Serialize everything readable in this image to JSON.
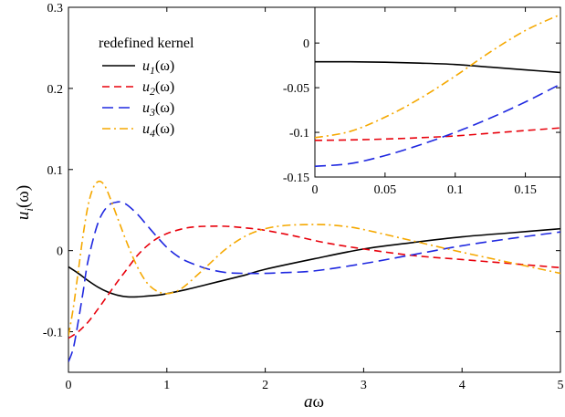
{
  "chart_data": [
    {
      "type": "line",
      "xlabel_italic": "a",
      "xlabel_rest": "ω",
      "ylabel_base": "u",
      "ylabel_sub": "i",
      "ylabel_rest": "(ω)",
      "xlim": [
        0,
        5
      ],
      "ylim": [
        -0.15,
        0.3
      ],
      "grid": false,
      "xticks": [
        0,
        1,
        2,
        3,
        4,
        5
      ],
      "xtick_labels": [
        "0",
        "1",
        "2",
        "3",
        "4",
        "5"
      ],
      "yticks": [
        -0.1,
        0,
        0.1,
        0.2,
        0.3
      ],
      "ytick_labels": [
        "-0.1",
        "0",
        "0.1",
        "0.2",
        "0.3"
      ],
      "legend": {
        "title": "redefined kernel",
        "placement": "upper-left",
        "entries": [
          {
            "base": "u",
            "sub": "1",
            "rest": "(ω)"
          },
          {
            "base": "u",
            "sub": "2",
            "rest": "(ω)"
          },
          {
            "base": "u",
            "sub": "3",
            "rest": "(ω)"
          },
          {
            "base": "u",
            "sub": "4",
            "rest": "(ω)"
          }
        ]
      },
      "series": [
        {
          "color": "#000000",
          "dash": "solid",
          "x": [
            0,
            0.1,
            0.2,
            0.3,
            0.4,
            0.5,
            0.6,
            0.7,
            0.8,
            0.9,
            1.0,
            1.2,
            1.4,
            1.6,
            1.8,
            2.0,
            2.5,
            3.0,
            3.5,
            4.0,
            4.5,
            5.0
          ],
          "y": [
            -0.02,
            -0.028,
            -0.037,
            -0.045,
            -0.051,
            -0.055,
            -0.057,
            -0.057,
            -0.056,
            -0.055,
            -0.053,
            -0.048,
            -0.042,
            -0.036,
            -0.03,
            -0.023,
            -0.01,
            0.002,
            0.01,
            0.017,
            0.022,
            0.027
          ]
        },
        {
          "color": "#e8000b",
          "dash": "8 5",
          "x": [
            0,
            0.1,
            0.2,
            0.3,
            0.4,
            0.5,
            0.6,
            0.7,
            0.8,
            0.9,
            1.0,
            1.1,
            1.2,
            1.3,
            1.4,
            1.6,
            1.8,
            2.0,
            2.3,
            2.6,
            3.0,
            3.5,
            4.0,
            4.5,
            5.0
          ],
          "y": [
            -0.108,
            -0.1,
            -0.088,
            -0.072,
            -0.055,
            -0.038,
            -0.022,
            -0.006,
            0.006,
            0.015,
            0.021,
            0.025,
            0.028,
            0.0295,
            0.03,
            0.03,
            0.028,
            0.025,
            0.018,
            0.01,
            0.002,
            -0.006,
            -0.011,
            -0.016,
            -0.021
          ]
        },
        {
          "color": "#1f28e0",
          "dash": "12 6",
          "x": [
            0,
            0.05,
            0.1,
            0.15,
            0.2,
            0.3,
            0.4,
            0.5,
            0.55,
            0.6,
            0.7,
            0.8,
            0.9,
            1.0,
            1.1,
            1.2,
            1.4,
            1.6,
            1.8,
            2.0,
            2.2,
            2.5,
            3.0,
            3.5,
            4.0,
            4.5,
            5.0
          ],
          "y": [
            -0.137,
            -0.12,
            -0.087,
            -0.05,
            -0.012,
            0.034,
            0.055,
            0.06,
            0.059,
            0.056,
            0.045,
            0.031,
            0.017,
            0.004,
            -0.006,
            -0.013,
            -0.022,
            -0.027,
            -0.028,
            -0.028,
            -0.027,
            -0.025,
            -0.016,
            -0.005,
            0.006,
            0.015,
            0.023
          ]
        },
        {
          "color": "#f5a800",
          "dash": "9 4 2 4",
          "x": [
            0,
            0.05,
            0.1,
            0.15,
            0.2,
            0.25,
            0.3,
            0.35,
            0.4,
            0.5,
            0.6,
            0.7,
            0.8,
            0.9,
            1.0,
            1.1,
            1.2,
            1.4,
            1.6,
            1.8,
            2.0,
            2.2,
            2.4,
            2.6,
            2.8,
            3.0,
            3.5,
            4.0,
            4.5,
            5.0
          ],
          "y": [
            -0.105,
            -0.07,
            -0.025,
            0.02,
            0.056,
            0.077,
            0.085,
            0.083,
            0.072,
            0.04,
            0.008,
            -0.02,
            -0.04,
            -0.05,
            -0.053,
            -0.05,
            -0.042,
            -0.02,
            0.002,
            0.018,
            0.027,
            0.031,
            0.032,
            0.032,
            0.03,
            0.026,
            0.012,
            -0.002,
            -0.015,
            -0.028
          ]
        }
      ]
    },
    {
      "type": "line",
      "placement": "inset-top-right",
      "xlim": [
        0,
        0.175
      ],
      "ylim": [
        -0.15,
        0.04
      ],
      "grid": false,
      "xticks": [
        0,
        0.05,
        0.1,
        0.15
      ],
      "xtick_labels": [
        "0",
        "0.05",
        "0.1",
        "0.15"
      ],
      "yticks": [
        -0.15,
        -0.1,
        -0.05,
        0
      ],
      "ytick_labels": [
        "-0.15",
        "-0.1",
        "-0.05",
        "0"
      ],
      "series": [
        {
          "color": "#000000",
          "dash": "solid",
          "x": [
            0,
            0.025,
            0.05,
            0.075,
            0.1,
            0.125,
            0.15,
            0.175
          ],
          "y": [
            -0.021,
            -0.021,
            -0.0215,
            -0.0225,
            -0.024,
            -0.027,
            -0.03,
            -0.033
          ]
        },
        {
          "color": "#e8000b",
          "dash": "8 5",
          "x": [
            0,
            0.025,
            0.05,
            0.075,
            0.1,
            0.125,
            0.15,
            0.175
          ],
          "y": [
            -0.109,
            -0.1085,
            -0.1075,
            -0.106,
            -0.104,
            -0.101,
            -0.098,
            -0.095
          ]
        },
        {
          "color": "#1f28e0",
          "dash": "12 6",
          "x": [
            0,
            0.025,
            0.05,
            0.075,
            0.1,
            0.125,
            0.15,
            0.175
          ],
          "y": [
            -0.138,
            -0.135,
            -0.126,
            -0.114,
            -0.1,
            -0.084,
            -0.066,
            -0.046
          ]
        },
        {
          "color": "#f5a800",
          "dash": "9 4 2 4",
          "x": [
            0,
            0.025,
            0.05,
            0.075,
            0.1,
            0.125,
            0.15,
            0.175
          ],
          "y": [
            -0.106,
            -0.099,
            -0.083,
            -0.062,
            -0.037,
            -0.01,
            0.014,
            0.032
          ]
        }
      ]
    }
  ]
}
